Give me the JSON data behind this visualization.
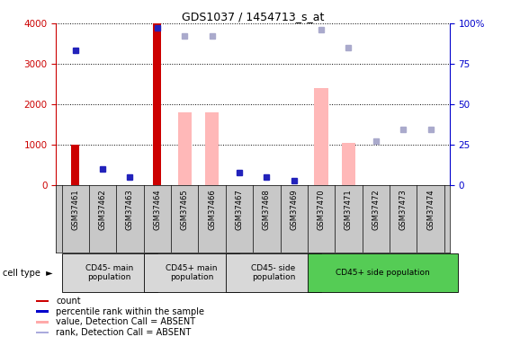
{
  "title": "GDS1037 / 1454713_s_at",
  "samples": [
    "GSM37461",
    "GSM37462",
    "GSM37463",
    "GSM37464",
    "GSM37465",
    "GSM37466",
    "GSM37467",
    "GSM37468",
    "GSM37469",
    "GSM37470",
    "GSM37471",
    "GSM37472",
    "GSM37473",
    "GSM37474"
  ],
  "bar_values": [
    1000,
    0,
    0,
    4000,
    0,
    0,
    0,
    0,
    0,
    0,
    0,
    0,
    0,
    0
  ],
  "absent_bar_values": [
    0,
    0,
    0,
    0,
    1800,
    1800,
    0,
    0,
    0,
    2400,
    1050,
    0,
    0,
    0
  ],
  "rank_dots_left_values": [
    3350,
    400,
    200,
    3900,
    null,
    null,
    310,
    200,
    120,
    null,
    null,
    null,
    null,
    null
  ],
  "rank_absent_dots_left": [
    null,
    null,
    null,
    null,
    3700,
    3700,
    null,
    null,
    null,
    3850,
    3400,
    1100,
    1380,
    1380
  ],
  "small_red_dots": [
    null,
    null,
    null,
    null,
    null,
    null,
    null,
    null,
    null,
    null,
    null,
    50,
    50,
    50
  ],
  "ylim_left": [
    0,
    4000
  ],
  "ylim_right": [
    0,
    100
  ],
  "yticks_left": [
    0,
    1000,
    2000,
    3000,
    4000
  ],
  "yticks_right": [
    0,
    25,
    50,
    75,
    100
  ],
  "cell_type_groups": [
    {
      "label": "CD45- main\npopulation",
      "start": 0,
      "end": 2,
      "color": "#d8d8d8"
    },
    {
      "label": "CD45+ main\npopulation",
      "start": 3,
      "end": 5,
      "color": "#d8d8d8"
    },
    {
      "label": "CD45- side\npopulation",
      "start": 6,
      "end": 8,
      "color": "#d8d8d8"
    },
    {
      "label": "CD45+ side population",
      "start": 9,
      "end": 13,
      "color": "#55cc55"
    }
  ],
  "legend_items": [
    {
      "label": "count",
      "color": "#cc0000"
    },
    {
      "label": "percentile rank within the sample",
      "color": "#0000cc"
    },
    {
      "label": "value, Detection Call = ABSENT",
      "color": "#ffaaaa"
    },
    {
      "label": "rank, Detection Call = ABSENT",
      "color": "#aaaadd"
    }
  ],
  "absent_bar_color": "#ffb8b8",
  "absent_dot_color": "#aaaacc",
  "present_dot_color": "#2222bb",
  "bar_color": "#cc0000",
  "background_color": "#ffffff",
  "tick_color_left": "#cc0000",
  "tick_color_right": "#0000cc",
  "xlabel_bg": "#c8c8c8"
}
